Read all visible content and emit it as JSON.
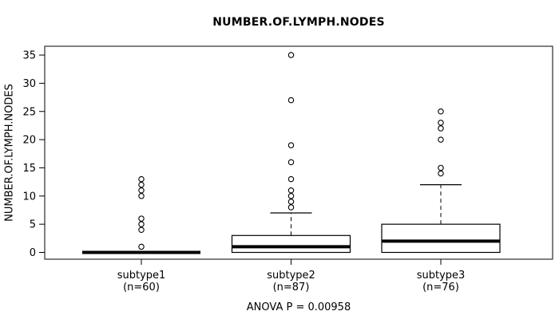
{
  "chart_data": {
    "type": "boxplot",
    "title": "NUMBER.OF.LYMPH.NODES",
    "ylabel": "NUMBER.OF.LYMPH.NODES",
    "annotation": "ANOVA P = 0.00958",
    "ylim": [
      0,
      35
    ],
    "y_ticks": [
      0,
      5,
      10,
      15,
      20,
      25,
      30,
      35
    ],
    "grid": false,
    "line_color": "#000000",
    "box_fill": "#ffffff",
    "groups": [
      {
        "label": "subtype1",
        "sublabel": "(n=60)",
        "n": 60,
        "q1": 0,
        "median": 0,
        "q3": 0,
        "whisker_low": 0,
        "whisker_high": 0,
        "outliers": [
          1,
          4,
          5,
          6,
          10,
          11,
          12,
          13
        ]
      },
      {
        "label": "subtype2",
        "sublabel": "(n=87)",
        "n": 87,
        "q1": 0,
        "median": 1,
        "q3": 3,
        "whisker_low": 0,
        "whisker_high": 7,
        "outliers": [
          8,
          9,
          10,
          11,
          13,
          16,
          19,
          27,
          35
        ]
      },
      {
        "label": "subtype3",
        "sublabel": "(n=76)",
        "n": 76,
        "q1": 0,
        "median": 2,
        "q3": 5,
        "whisker_low": 0,
        "whisker_high": 12,
        "outliers": [
          14,
          15,
          20,
          22,
          23,
          25
        ]
      }
    ]
  }
}
